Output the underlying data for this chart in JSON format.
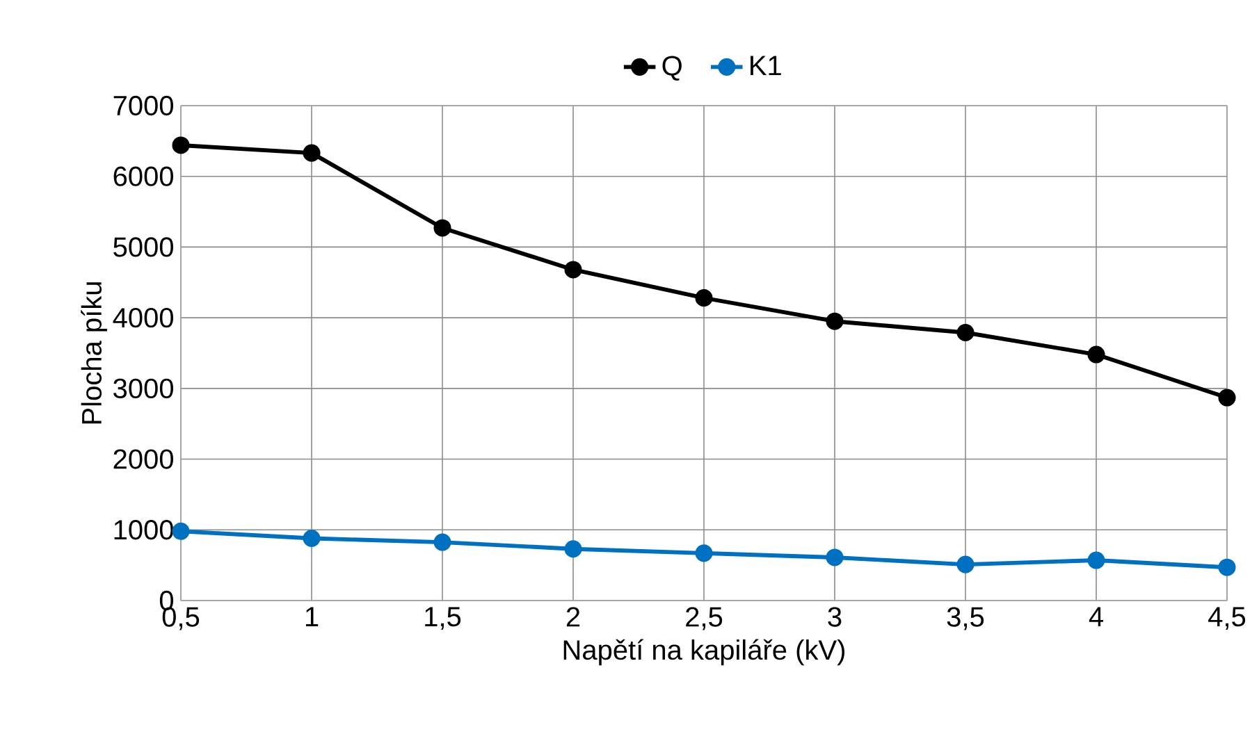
{
  "chart_data": {
    "type": "line",
    "xlabel": "Napětí na kapiláře (kV)",
    "ylabel": "Plocha píku",
    "x": [
      0.5,
      1,
      1.5,
      2,
      2.5,
      3,
      3.5,
      4,
      4.5
    ],
    "series": [
      {
        "name": "Q",
        "color": "#000000",
        "values": [
          6440,
          6330,
          5270,
          4680,
          4280,
          3950,
          3790,
          3480,
          2870
        ]
      },
      {
        "name": "K1",
        "color": "#0070c0",
        "values": [
          980,
          880,
          825,
          730,
          670,
          610,
          510,
          570,
          470
        ]
      }
    ],
    "xlim": [
      0.5,
      4.5
    ],
    "xticks": [
      {
        "value": 0.5,
        "label": "0,5"
      },
      1,
      {
        "value": 1.5,
        "label": "1,5"
      },
      2,
      {
        "value": 2.5,
        "label": "2,5"
      },
      3,
      {
        "value": 3.5,
        "label": "3,5"
      },
      4,
      {
        "value": 4.5,
        "label": "4,5"
      }
    ],
    "ylim": [
      0,
      7000
    ],
    "yticks": [
      0,
      1000,
      2000,
      3000,
      4000,
      5000,
      6000,
      7000
    ],
    "grid": true,
    "legend": "top",
    "marker": "circle",
    "line_style": "solid"
  }
}
